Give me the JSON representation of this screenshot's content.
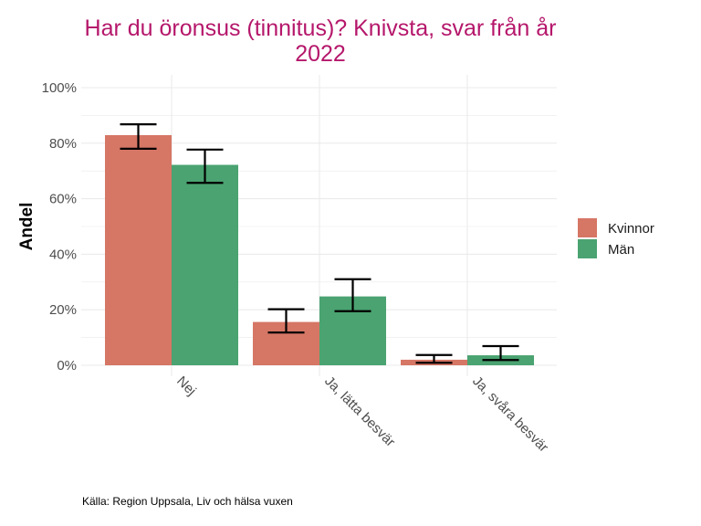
{
  "chart_data": {
    "type": "bar",
    "title_lines": [
      "Har du öronsus (tinnitus)? Knivsta, svar från år",
      "2022"
    ],
    "ylabel": "Andel",
    "xlabel": "",
    "categories": [
      "Nej",
      "Ja, lätta besvär",
      "Ja, svåra besvär"
    ],
    "series": [
      {
        "name": "Kvinnor",
        "color": "#d67665",
        "values": [
          82.9,
          15.6,
          2.0
        ],
        "ci_low": [
          78.0,
          11.8,
          0.9
        ],
        "ci_high": [
          86.8,
          20.2,
          3.7
        ]
      },
      {
        "name": "Män",
        "color": "#4aa371",
        "values": [
          72.2,
          24.8,
          3.6
        ],
        "ci_low": [
          65.7,
          19.5,
          1.9
        ],
        "ci_high": [
          77.7,
          31.0,
          6.9
        ]
      }
    ],
    "ylim": [
      0,
      100
    ],
    "yticks": [
      "0%",
      "20%",
      "40%",
      "60%",
      "80%",
      "100%"
    ],
    "grid": true,
    "legend_position": "right",
    "caption": "Källa: Region Uppsala, Liv och hälsa vuxen"
  }
}
